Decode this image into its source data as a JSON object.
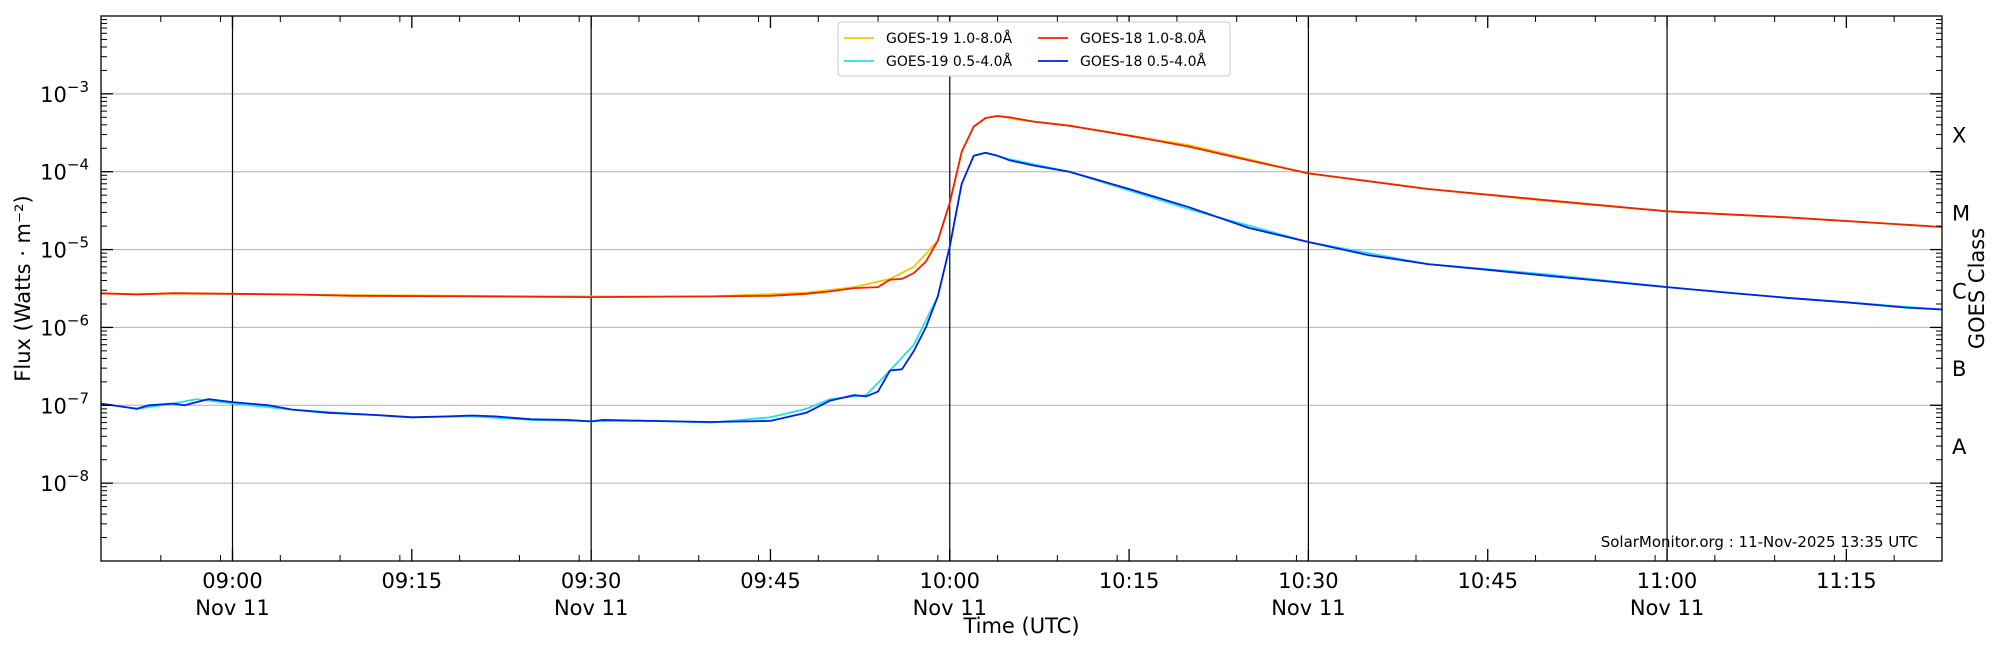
{
  "chart_data": {
    "type": "line",
    "title": "",
    "xlabel": "Time (UTC)",
    "ylabel": "Flux (Watts · m⁻²)",
    "y_scale": "log",
    "ylim": [
      1e-09,
      0.01
    ],
    "xlim": [
      "2025-11-11T08:49:00",
      "2025-11-11T11:23:00"
    ],
    "x_ticks": [
      {
        "t": "2025-11-11T09:00",
        "label": "09:00",
        "date": "Nov 11",
        "vline": true
      },
      {
        "t": "2025-11-11T09:15",
        "label": "09:15",
        "date": "",
        "vline": false
      },
      {
        "t": "2025-11-11T09:30",
        "label": "09:30",
        "date": "Nov 11",
        "vline": true
      },
      {
        "t": "2025-11-11T09:45",
        "label": "09:45",
        "date": "",
        "vline": false
      },
      {
        "t": "2025-11-11T10:00",
        "label": "10:00",
        "date": "Nov 11",
        "vline": true
      },
      {
        "t": "2025-11-11T10:15",
        "label": "10:15",
        "date": "",
        "vline": false
      },
      {
        "t": "2025-11-11T10:30",
        "label": "10:30",
        "date": "Nov 11",
        "vline": true
      },
      {
        "t": "2025-11-11T10:45",
        "label": "10:45",
        "date": "",
        "vline": false
      },
      {
        "t": "2025-11-11T11:00",
        "label": "11:00",
        "date": "Nov 11",
        "vline": true
      },
      {
        "t": "2025-11-11T11:15",
        "label": "11:15",
        "date": "",
        "vline": false
      }
    ],
    "y_ticks": [
      {
        "value": 1e-08,
        "base": "10",
        "exp": "−8"
      },
      {
        "value": 1e-07,
        "base": "10",
        "exp": "−7"
      },
      {
        "value": 1e-06,
        "base": "10",
        "exp": "−6"
      },
      {
        "value": 1e-05,
        "base": "10",
        "exp": "−5"
      },
      {
        "value": 0.0001,
        "base": "10",
        "exp": "−4"
      },
      {
        "value": 0.001,
        "base": "10",
        "exp": "−3"
      }
    ],
    "grid": "horizontal",
    "goes_class": {
      "axis_label": "GOES Class",
      "levels": [
        {
          "label": "A",
          "value": 3e-08
        },
        {
          "label": "B",
          "value": 3e-07
        },
        {
          "label": "C",
          "value": 3e-06
        },
        {
          "label": "M",
          "value": 3e-05
        },
        {
          "label": "X",
          "value": 0.0003
        }
      ]
    },
    "legend": {
      "placement": "top-center",
      "entries": [
        {
          "name": "GOES-19 1.0-8.0Å",
          "color": "#f5c400"
        },
        {
          "name": "GOES-19 0.5-4.0Å",
          "color": "#22e0f0"
        },
        {
          "name": "GOES-18 1.0-8.0Å",
          "color": "#ee2200"
        },
        {
          "name": "GOES-18 0.5-4.0Å",
          "color": "#0022dd"
        }
      ]
    },
    "series": [
      {
        "name": "GOES-19 1.0-8.0Å",
        "color": "#f5c400",
        "x": [
          "2025-11-11T08:49",
          "2025-11-11T08:55",
          "2025-11-11T09:00",
          "2025-11-11T09:10",
          "2025-11-11T09:20",
          "2025-11-11T09:30",
          "2025-11-11T09:40",
          "2025-11-11T09:48",
          "2025-11-11T09:52",
          "2025-11-11T09:55",
          "2025-11-11T09:57",
          "2025-11-11T09:59",
          "2025-11-11T10:00",
          "2025-11-11T10:01",
          "2025-11-11T10:02",
          "2025-11-11T10:03",
          "2025-11-11T10:04",
          "2025-11-11T10:06",
          "2025-11-11T10:10",
          "2025-11-11T10:20",
          "2025-11-11T10:30",
          "2025-11-11T10:40",
          "2025-11-11T10:50",
          "2025-11-11T11:00",
          "2025-11-11T11:10",
          "2025-11-11T11:23"
        ],
        "y": [
          2.7e-06,
          2.7e-06,
          2.7e-06,
          2.6e-06,
          2.55e-06,
          2.5e-06,
          2.5e-06,
          2.8e-06,
          3.3e-06,
          4.2e-06,
          6e-06,
          1.3e-05,
          4e-05,
          0.00018,
          0.00038,
          0.00049,
          0.00052,
          0.00046,
          0.00039,
          0.00022,
          9.5e-05,
          6e-05,
          4.2e-05,
          3.1e-05,
          2.6e-05,
          1.95e-05
        ]
      },
      {
        "name": "GOES-19 0.5-4.0Å",
        "color": "#22e0f0",
        "x": [
          "2025-11-11T08:49",
          "2025-11-11T08:52",
          "2025-11-11T08:55",
          "2025-11-11T08:57",
          "2025-11-11T09:00",
          "2025-11-11T09:05",
          "2025-11-11T09:10",
          "2025-11-11T09:15",
          "2025-11-11T09:20",
          "2025-11-11T09:25",
          "2025-11-11T09:30",
          "2025-11-11T09:35",
          "2025-11-11T09:40",
          "2025-11-11T09:45",
          "2025-11-11T09:48",
          "2025-11-11T09:50",
          "2025-11-11T09:53",
          "2025-11-11T09:55",
          "2025-11-11T09:57",
          "2025-11-11T09:59",
          "2025-11-11T10:00",
          "2025-11-11T10:01",
          "2025-11-11T10:02",
          "2025-11-11T10:03",
          "2025-11-11T10:05",
          "2025-11-11T10:10",
          "2025-11-11T10:20",
          "2025-11-11T10:30",
          "2025-11-11T10:40",
          "2025-11-11T10:50",
          "2025-11-11T11:00",
          "2025-11-11T11:10",
          "2025-11-11T11:23"
        ],
        "y": [
          1.05e-07,
          9e-08,
          1.05e-07,
          1.2e-07,
          1.05e-07,
          8.8e-08,
          7.8e-08,
          7e-08,
          7.2e-08,
          6.5e-08,
          6.2e-08,
          6.3e-08,
          6e-08,
          7e-08,
          9e-08,
          1.2e-07,
          1.35e-07,
          2.8e-07,
          6e-07,
          2.5e-06,
          1.1e-05,
          7e-05,
          0.00016,
          0.000175,
          0.000145,
          0.0001,
          3.3e-05,
          1.25e-05,
          6.5e-06,
          4.8e-06,
          3.3e-06,
          2.4e-06,
          1.7e-06
        ]
      },
      {
        "name": "GOES-18 1.0-8.0Å",
        "color": "#ee2200",
        "x": [
          "2025-11-11T08:49",
          "2025-11-11T08:52",
          "2025-11-11T08:55",
          "2025-11-11T09:00",
          "2025-11-11T09:05",
          "2025-11-11T09:10",
          "2025-11-11T09:20",
          "2025-11-11T09:30",
          "2025-11-11T09:40",
          "2025-11-11T09:45",
          "2025-11-11T09:48",
          "2025-11-11T09:50",
          "2025-11-11T09:52",
          "2025-11-11T09:54",
          "2025-11-11T09:55",
          "2025-11-11T09:56",
          "2025-11-11T09:57",
          "2025-11-11T09:58",
          "2025-11-11T09:59",
          "2025-11-11T10:00",
          "2025-11-11T10:01",
          "2025-11-11T10:02",
          "2025-11-11T10:03",
          "2025-11-11T10:04",
          "2025-11-11T10:05",
          "2025-11-11T10:07",
          "2025-11-11T10:10",
          "2025-11-11T10:15",
          "2025-11-11T10:20",
          "2025-11-11T10:25",
          "2025-11-11T10:30",
          "2025-11-11T10:40",
          "2025-11-11T10:50",
          "2025-11-11T11:00",
          "2025-11-11T11:10",
          "2025-11-11T11:23"
        ],
        "y": [
          2.75e-06,
          2.65e-06,
          2.75e-06,
          2.7e-06,
          2.65e-06,
          2.55e-06,
          2.5e-06,
          2.45e-06,
          2.5e-06,
          2.55e-06,
          2.7e-06,
          2.9e-06,
          3.2e-06,
          3.3e-06,
          4.1e-06,
          4.2e-06,
          5e-06,
          7e-06,
          1.3e-05,
          4e-05,
          0.00018,
          0.00038,
          0.00049,
          0.00052,
          0.0005,
          0.00044,
          0.00039,
          0.00029,
          0.00021,
          0.00014,
          9.5e-05,
          6e-05,
          4.3e-05,
          3.1e-05,
          2.6e-05,
          1.95e-05
        ]
      },
      {
        "name": "GOES-18 0.5-4.0Å",
        "color": "#0022dd",
        "x": [
          "2025-11-11T08:49",
          "2025-11-11T08:52",
          "2025-11-11T08:53",
          "2025-11-11T08:55",
          "2025-11-11T08:56",
          "2025-11-11T08:57",
          "2025-11-11T08:58",
          "2025-11-11T09:00",
          "2025-11-11T09:03",
          "2025-11-11T09:05",
          "2025-11-11T09:08",
          "2025-11-11T09:12",
          "2025-11-11T09:15",
          "2025-11-11T09:18",
          "2025-11-11T09:20",
          "2025-11-11T09:22",
          "2025-11-11T09:25",
          "2025-11-11T09:28",
          "2025-11-11T09:30",
          "2025-11-11T09:31",
          "2025-11-11T09:35",
          "2025-11-11T09:40",
          "2025-11-11T09:45",
          "2025-11-11T09:48",
          "2025-11-11T09:50",
          "2025-11-11T09:52",
          "2025-11-11T09:53",
          "2025-11-11T09:54",
          "2025-11-11T09:55",
          "2025-11-11T09:56",
          "2025-11-11T09:57",
          "2025-11-11T09:58",
          "2025-11-11T09:59",
          "2025-11-11T10:00",
          "2025-11-11T10:01",
          "2025-11-11T10:02",
          "2025-11-11T10:03",
          "2025-11-11T10:04",
          "2025-11-11T10:05",
          "2025-11-11T10:07",
          "2025-11-11T10:10",
          "2025-11-11T10:15",
          "2025-11-11T10:20",
          "2025-11-11T10:25",
          "2025-11-11T10:30",
          "2025-11-11T10:35",
          "2025-11-11T10:40",
          "2025-11-11T10:45",
          "2025-11-11T10:50",
          "2025-11-11T10:55",
          "2025-11-11T11:00",
          "2025-11-11T11:05",
          "2025-11-11T11:10",
          "2025-11-11T11:15",
          "2025-11-11T11:20",
          "2025-11-11T11:23"
        ],
        "y": [
          1.05e-07,
          9e-08,
          1e-07,
          1.05e-07,
          1e-07,
          1.1e-07,
          1.2e-07,
          1.1e-07,
          1e-07,
          8.8e-08,
          8e-08,
          7.5e-08,
          7e-08,
          7.2e-08,
          7.4e-08,
          7.2e-08,
          6.6e-08,
          6.5e-08,
          6.2e-08,
          6.5e-08,
          6.3e-08,
          6.1e-08,
          6.3e-08,
          8e-08,
          1.15e-07,
          1.35e-07,
          1.3e-07,
          1.5e-07,
          2.8e-07,
          2.9e-07,
          5e-07,
          1e-06,
          2.5e-06,
          1.1e-05,
          7e-05,
          0.00016,
          0.000175,
          0.00016,
          0.00014,
          0.00012,
          0.0001,
          6e-05,
          3.5e-05,
          1.9e-05,
          1.25e-05,
          8.5e-06,
          6.5e-06,
          5.5e-06,
          4.6e-06,
          3.9e-06,
          3.3e-06,
          2.8e-06,
          2.4e-06,
          2.1e-06,
          1.8e-06,
          1.7e-06
        ]
      }
    ],
    "credit": "SolarMonitor.org : 11-Nov-2025 13:35 UTC"
  }
}
